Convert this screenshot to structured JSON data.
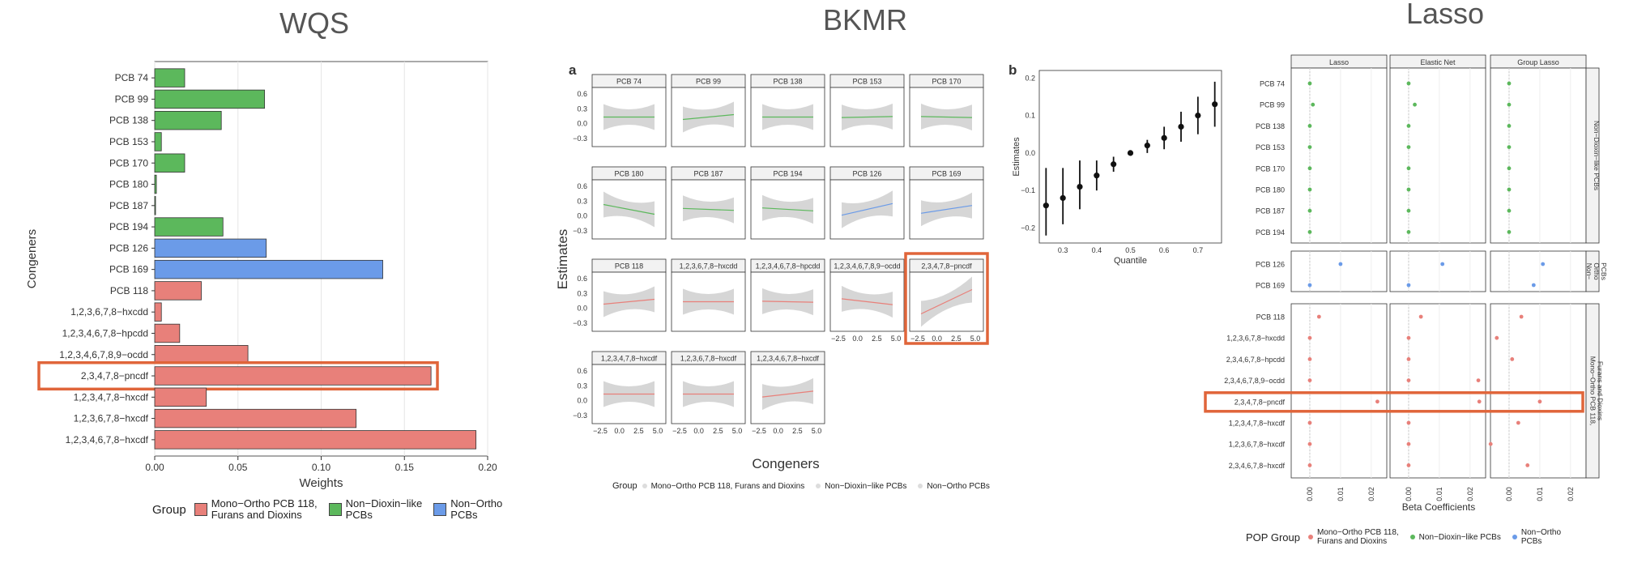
{
  "colors": {
    "mono": "#e8807a",
    "nondioxin": "#5cb85c",
    "nonortho": "#6b9be8",
    "highlight": "#e0653a",
    "panel": "#ebebeb"
  },
  "titles": {
    "wqs": "WQS",
    "bkmr": "BKMR",
    "lasso": "Lasso"
  },
  "chart_data": [
    {
      "type": "bar",
      "title": "WQS",
      "xlabel": "Weights",
      "ylabel": "Congeners",
      "xlim": [
        0,
        0.2
      ],
      "xticks": [
        "0.00",
        "0.05",
        "0.10",
        "0.15",
        "0.20"
      ],
      "categories": [
        "PCB 74",
        "PCB 99",
        "PCB 138",
        "PCB 153",
        "PCB 170",
        "PCB 180",
        "PCB 187",
        "PCB 194",
        "PCB 126",
        "PCB 169",
        "PCB 118",
        "1,2,3,6,7,8−hxcdd",
        "1,2,3,4,6,7,8−hpcdd",
        "1,2,3,4,6,7,8,9−ocdd",
        "2,3,4,7,8−pncdf",
        "1,2,3,4,7,8−hxcdf",
        "1,2,3,6,7,8−hxcdf",
        "1,2,3,4,6,7,8−hxcdf"
      ],
      "values": [
        0.018,
        0.066,
        0.04,
        0.004,
        0.018,
        0.001,
        0.0005,
        0.041,
        0.067,
        0.137,
        0.028,
        0.004,
        0.015,
        0.056,
        0.166,
        0.031,
        0.121,
        0.193
      ],
      "groups": [
        "nondioxin",
        "nondioxin",
        "nondioxin",
        "nondioxin",
        "nondioxin",
        "nondioxin",
        "nondioxin",
        "nondioxin",
        "nonortho",
        "nonortho",
        "mono",
        "mono",
        "mono",
        "mono",
        "mono",
        "mono",
        "mono",
        "mono"
      ],
      "highlight": "2,3,4,7,8−pncdf",
      "legend": {
        "title": "Group",
        "items": [
          "Mono−Ortho PCB 118,\nFurans and Dioxins",
          "Non−Dioxin−like\nPCBs",
          "Non−Ortho\nPCBs"
        ]
      }
    },
    {
      "type": "line",
      "title": "BKMR",
      "panel_label": "a",
      "xlabel": "Congeners",
      "ylabel": "Estimates",
      "yticks": [
        "0.6",
        "0.3",
        "0.0",
        "−0.3"
      ],
      "xticks": [
        "−2.5",
        "0.0",
        "2.5",
        "5.0"
      ],
      "panels": [
        {
          "name": "PCB 74",
          "group": "nondioxin",
          "slope": 0.0
        },
        {
          "name": "PCB 99",
          "group": "nondioxin",
          "slope": 0.05
        },
        {
          "name": "PCB 138",
          "group": "nondioxin",
          "slope": 0.0
        },
        {
          "name": "PCB 153",
          "group": "nondioxin",
          "slope": 0.01
        },
        {
          "name": "PCB 170",
          "group": "nondioxin",
          "slope": -0.01
        },
        {
          "name": "PCB 180",
          "group": "nondioxin",
          "slope": -0.1
        },
        {
          "name": "PCB 187",
          "group": "nondioxin",
          "slope": -0.02
        },
        {
          "name": "PCB 194",
          "group": "nondioxin",
          "slope": -0.03
        },
        {
          "name": "PCB 126",
          "group": "nonortho",
          "slope": 0.12
        },
        {
          "name": "PCB 169",
          "group": "nonortho",
          "slope": 0.08
        },
        {
          "name": "PCB 118",
          "group": "mono",
          "slope": 0.05
        },
        {
          "name": "1,2,3,6,7,8−hxcdd",
          "group": "mono",
          "slope": 0.0
        },
        {
          "name": "1,2,3,4,6,7,8−hpcdd",
          "group": "mono",
          "slope": -0.01
        },
        {
          "name": "1,2,3,4,6,7,8,9−ocdd",
          "group": "mono",
          "slope": -0.06
        },
        {
          "name": "2,3,4,7,8−pncdf",
          "group": "mono",
          "slope": 0.25
        },
        {
          "name": "1,2,3,4,7,8−hxcdf",
          "group": "mono",
          "slope": 0.0
        },
        {
          "name": "1,2,3,6,7,8−hxcdf",
          "group": "mono",
          "slope": 0.0
        },
        {
          "name": "1,2,3,4,6,7,8−hxcdf",
          "group": "mono",
          "slope": 0.06
        }
      ],
      "highlight": "2,3,4,7,8−pncdf",
      "legend": {
        "title": "Group",
        "items": [
          "Mono−Ortho PCB 118, Furans and Dioxins",
          "Non−Dioxin−like PCBs",
          "Non−Ortho PCBs"
        ]
      }
    },
    {
      "type": "scatter",
      "panel_label": "b",
      "xlabel": "Quantile",
      "ylabel": "Estimates",
      "xticks": [
        "0.3",
        "0.4",
        "0.5",
        "0.6",
        "0.7"
      ],
      "yticks": [
        "0.2",
        "0.1",
        "0.0",
        "−0.1",
        "−0.2"
      ],
      "xlim": [
        0.23,
        0.77
      ],
      "ylim": [
        -0.24,
        0.22
      ],
      "x": [
        0.25,
        0.3,
        0.35,
        0.4,
        0.45,
        0.5,
        0.55,
        0.6,
        0.65,
        0.7,
        0.75
      ],
      "y": [
        -0.14,
        -0.12,
        -0.09,
        -0.06,
        -0.03,
        0.0,
        0.02,
        0.04,
        0.07,
        0.1,
        0.13
      ],
      "lower": [
        -0.22,
        -0.19,
        -0.15,
        -0.1,
        -0.05,
        0.0,
        0.0,
        0.01,
        0.03,
        0.05,
        0.07
      ],
      "upper": [
        -0.04,
        -0.04,
        -0.02,
        -0.02,
        -0.01,
        0.0,
        0.035,
        0.07,
        0.11,
        0.15,
        0.19
      ]
    },
    {
      "type": "scatter",
      "title": "Lasso",
      "xlabel": "Beta Coefficients",
      "methods": [
        "Lasso",
        "Elastic Net",
        "Group Lasso"
      ],
      "xticks": [
        "0.00",
        "0.01",
        "0.02"
      ],
      "xlim": [
        -0.005,
        0.024
      ],
      "strips": [
        "Non−Dioxin−like PCBs",
        "Non−\nOrtho\nPCBs",
        "Mono−Ortho PCB 118,\nFurans and Dioxins"
      ],
      "categories": [
        "PCB 74",
        "PCB 99",
        "PCB 138",
        "PCB 153",
        "PCB 170",
        "PCB 180",
        "PCB 187",
        "PCB 194",
        "PCB 126",
        "PCB 169",
        "PCB 118",
        "1,2,3,6,7,8−hxcdd",
        "2,3,4,6,7,8−hpcdd",
        "2,3,4,6,7,8,9−ocdd",
        "2,3,4,7,8−pncdf",
        "1,2,3,4,7,8−hxcdf",
        "1,2,3,6,7,8−hxcdf",
        "2,3,4,6,7,8−hxcdf"
      ],
      "groups": [
        "nondioxin",
        "nondioxin",
        "nondioxin",
        "nondioxin",
        "nondioxin",
        "nondioxin",
        "nondioxin",
        "nondioxin",
        "nonortho",
        "nonortho",
        "mono",
        "mono",
        "mono",
        "mono",
        "mono",
        "mono",
        "mono",
        "mono"
      ],
      "series": [
        {
          "name": "Lasso",
          "values": [
            0,
            0.001,
            0,
            0,
            0,
            0,
            0,
            0,
            0.01,
            0,
            0.003,
            0,
            0,
            0,
            0.022,
            0,
            0,
            0
          ]
        },
        {
          "name": "Elastic Net",
          "values": [
            0,
            0.002,
            0,
            0,
            0,
            0,
            0,
            0,
            0.011,
            0,
            0.004,
            0,
            0,
            0,
            0.023,
            0,
            0,
            0
          ]
        },
        {
          "name": "Group Lasso",
          "values": [
            0,
            0,
            0,
            0,
            0,
            0,
            0,
            0,
            0.011,
            0.008,
            0.004,
            -0.004,
            0.001,
            -0.01,
            0.01,
            0.003,
            -0.006,
            0.006
          ]
        }
      ],
      "highlight": "2,3,4,7,8−pncdf",
      "legend": {
        "title": "POP Group",
        "items": [
          "Mono−Ortho PCB 118,\nFurans and Dioxins",
          "Non−Dioxin−like PCBs",
          "Non−Ortho\nPCBs"
        ]
      }
    }
  ]
}
